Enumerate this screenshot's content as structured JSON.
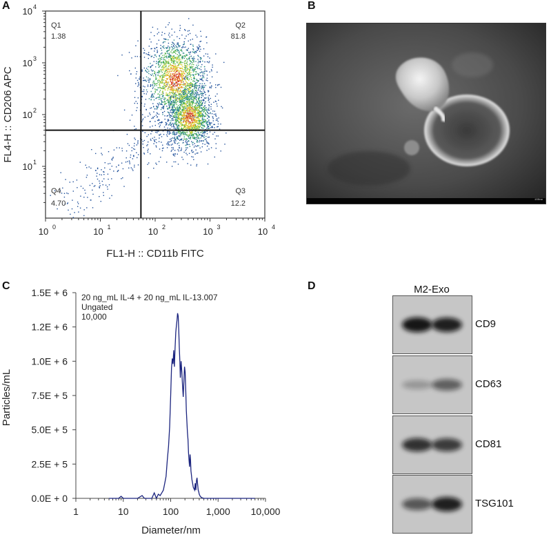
{
  "panels": {
    "a": "A",
    "b": "B",
    "c": "C",
    "d": "D"
  },
  "chart_data": [
    {
      "type": "scatter",
      "title": "",
      "xlabel": "FL1-H :: CD11b FITC",
      "ylabel": "FL4-H :: CD206 APC",
      "xscale": "log",
      "yscale": "log",
      "xlim": [
        1,
        10000
      ],
      "ylim": [
        1,
        10000
      ],
      "x_ticks": [
        {
          "base": "10",
          "exp": "0"
        },
        {
          "base": "10",
          "exp": "1"
        },
        {
          "base": "10",
          "exp": "2"
        },
        {
          "base": "10",
          "exp": "3"
        },
        {
          "base": "10",
          "exp": "4"
        }
      ],
      "y_ticks": [
        {
          "base": "10",
          "exp": "1"
        },
        {
          "base": "10",
          "exp": "2"
        },
        {
          "base": "10",
          "exp": "3"
        },
        {
          "base": "10",
          "exp": "4"
        }
      ],
      "gates": {
        "x": 55,
        "y": 50
      },
      "quadrants": [
        {
          "name": "Q1",
          "value": "1.38",
          "position": "top-left"
        },
        {
          "name": "Q2",
          "value": "81.8",
          "position": "top-right"
        },
        {
          "name": "Q3",
          "value": "12.2",
          "position": "bottom-right"
        },
        {
          "name": "Q4",
          "value": "4.70",
          "position": "bottom-left"
        }
      ],
      "density_colors": [
        "#1f4f9a",
        "#2a8a8c",
        "#4fb24a",
        "#d8d83a",
        "#e8902c",
        "#d43a2a"
      ],
      "populations": [
        {
          "description": "main upper cluster",
          "x_center": 230,
          "y_center": 500,
          "spread_x_dec": 0.28,
          "spread_y_dec": 0.4
        },
        {
          "description": "main lower dense cluster",
          "x_center": 420,
          "y_center": 90,
          "spread_x_dec": 0.2,
          "spread_y_dec": 0.3
        }
      ]
    },
    {
      "type": "line",
      "title": "",
      "annotation": [
        "20 ng_mL IL-4 + 20 ng_mL IL-13.007",
        "Ungated",
        "10,000"
      ],
      "xlabel": "Diameter/nm",
      "ylabel": "Particles/mL",
      "xscale": "log",
      "xlim": [
        1,
        10000
      ],
      "ylim": [
        0,
        1500000
      ],
      "x_tick_labels": [
        "1",
        "10",
        "100",
        "1,000",
        "10,000"
      ],
      "y_ticks": [
        0,
        250000,
        500000,
        750000,
        1000000,
        1250000,
        1500000
      ],
      "y_tick_labels": [
        "0.0E + 0",
        "2.5E + 5",
        "5.0E + 5",
        "7.5E + 5",
        "1.0E + 6",
        "1.2E + 6",
        "1.5E + 6"
      ],
      "color": "#1a237e",
      "series": [
        {
          "x": [
            5,
            8,
            9,
            10,
            20,
            25,
            28,
            40,
            45,
            50,
            55,
            60,
            65,
            70,
            75,
            80,
            85,
            90,
            95,
            100,
            104,
            108,
            112,
            116,
            120,
            124,
            128,
            132,
            136,
            140,
            144,
            148,
            152,
            156,
            160,
            166,
            172,
            178,
            184,
            190,
            196,
            202,
            208,
            214,
            220,
            226,
            232,
            238,
            244,
            250,
            256,
            262,
            268,
            274,
            280,
            290,
            300,
            310,
            320,
            330,
            340,
            350,
            360,
            370,
            380,
            390,
            400,
            420,
            450,
            500,
            600,
            800,
            1000,
            2000,
            6000
          ],
          "y": [
            0,
            0,
            15000,
            0,
            0,
            20000,
            0,
            0,
            40000,
            0,
            30000,
            20000,
            40000,
            60000,
            110000,
            160000,
            280000,
            380000,
            520000,
            750000,
            950000,
            1020000,
            980000,
            1080000,
            960000,
            1100000,
            1210000,
            1260000,
            1300000,
            1350000,
            1330000,
            1230000,
            1100000,
            1000000,
            880000,
            1000000,
            920000,
            820000,
            740000,
            860000,
            960000,
            920000,
            780000,
            640000,
            560000,
            480000,
            430000,
            330000,
            280000,
            230000,
            320000,
            280000,
            200000,
            170000,
            140000,
            110000,
            80000,
            70000,
            60000,
            110000,
            60000,
            130000,
            150000,
            100000,
            60000,
            50000,
            30000,
            15000,
            5000,
            0,
            0,
            0,
            0,
            0,
            0
          ]
        }
      ]
    }
  ],
  "em": {
    "scale_label": "100nm"
  },
  "western_blot": {
    "header": "M2-Exo",
    "bands": [
      {
        "label": "CD9",
        "intensity_left": 0.95,
        "intensity_right": 0.9
      },
      {
        "label": "CD63",
        "intensity_left": 0.25,
        "intensity_right": 0.55
      },
      {
        "label": "CD81",
        "intensity_left": 0.8,
        "intensity_right": 0.75
      },
      {
        "label": "TSG101",
        "intensity_left": 0.6,
        "intensity_right": 0.9
      }
    ]
  }
}
